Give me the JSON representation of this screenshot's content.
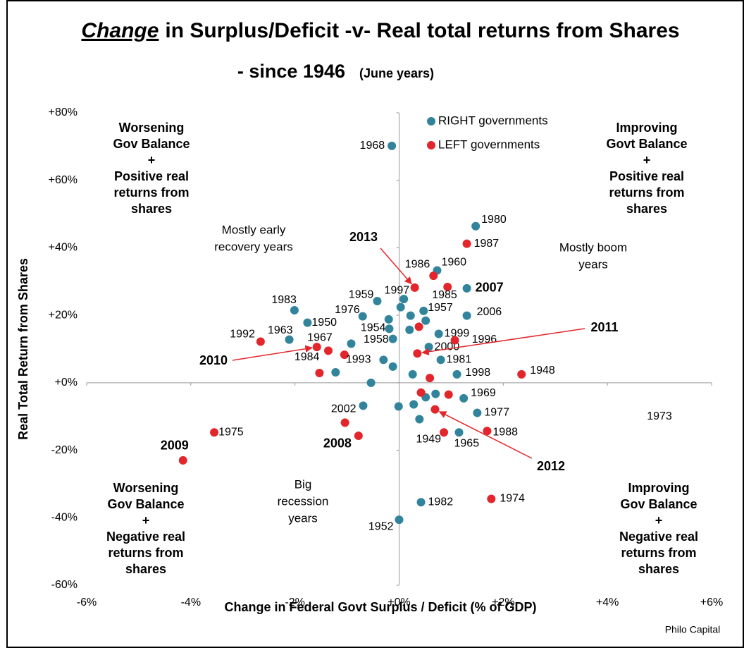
{
  "chart_data": {
    "type": "scatter",
    "title": [
      "Change",
      "in Surplus/Deficit -v- Real total returns from Shares"
    ],
    "subtitle": [
      "- since 1946",
      "(June years)"
    ],
    "x_label": "Change in Federal Govt Surplus / Deficit (% of GDP)",
    "y_label": "Real Total Return from Shares",
    "source": "Philo Capital",
    "xlim": [
      -6,
      6
    ],
    "ylim": [
      -60,
      80
    ],
    "xticks": [
      {
        "value": -6,
        "label": "-6%"
      },
      {
        "value": -4,
        "label": "-4%"
      },
      {
        "value": -2,
        "label": "-2%"
      },
      {
        "value": 0,
        "label": "+0%"
      },
      {
        "value": 2,
        "label": "+2%"
      },
      {
        "value": 4,
        "label": "+4%"
      },
      {
        "value": 6,
        "label": "+6%"
      }
    ],
    "yticks": [
      {
        "value": -60,
        "label": "-60%"
      },
      {
        "value": -40,
        "label": "-40%"
      },
      {
        "value": -20,
        "label": "-20%"
      },
      {
        "value": 0,
        "label": "+0%"
      },
      {
        "value": 20,
        "label": "+20%"
      },
      {
        "value": 40,
        "label": "+40%"
      },
      {
        "value": 60,
        "label": "+60%"
      },
      {
        "value": 80,
        "label": "+80%"
      }
    ],
    "series": [
      {
        "name": "RIGHT governments",
        "color": "#31849b",
        "x": [
          -0.14,
          1.47,
          0.73,
          1.3,
          -2.01,
          -0.42,
          0.09,
          0.03,
          -0.7,
          -0.2,
          0.47,
          0.22,
          0.51,
          -1.76,
          -0.19,
          0.2,
          -2.11,
          -0.12,
          0.76,
          1.3,
          -0.92,
          0.57,
          0.8,
          -0.3,
          -0.12,
          -1.22,
          0.26,
          1.11,
          -0.54,
          -0.69,
          -0.01,
          0.28,
          0.51,
          0.7,
          1.24,
          1.5,
          0.39,
          1.15,
          0.42,
          0
        ],
        "y": [
          70.2,
          46.4,
          33.3,
          28.0,
          21.5,
          24.2,
          24.8,
          22.4,
          19.7,
          18.8,
          21.3,
          19.9,
          18.4,
          17.8,
          16.0,
          15.7,
          12.8,
          13.0,
          14.5,
          19.9,
          11.6,
          10.6,
          6.8,
          6.8,
          4.8,
          3.1,
          2.5,
          2.5,
          0,
          -6.8,
          -7.0,
          -6.4,
          -4.3,
          -3.3,
          -4.6,
          -8.9,
          -10.8,
          -14.7,
          -35.4,
          -40.6
        ],
        "labels": [
          "1968",
          "1980",
          "1960",
          "2007",
          "1983",
          "1959",
          "1997",
          null,
          "1976",
          null,
          "1957",
          null,
          null,
          "1950",
          "1954",
          null,
          "1963",
          "1958",
          "1999",
          "2006",
          null,
          "2000",
          "1981",
          null,
          null,
          null,
          null,
          "1998",
          null,
          "2002",
          null,
          null,
          null,
          null,
          "1969",
          "1977",
          null,
          "1965",
          "1982",
          "1952"
        ]
      },
      {
        "name": "LEFT governments",
        "color": "#e3262b",
        "x": [
          0.3,
          0.66,
          0.93,
          1.3,
          -2.66,
          -1.58,
          -1.36,
          -1.05,
          0.38,
          1.07,
          0.35,
          -1.53,
          0.59,
          2.35,
          0.42,
          0.95,
          0.69,
          -3.55,
          -4.15,
          -1.04,
          -0.78,
          0.86,
          1.69,
          1.77
        ],
        "y": [
          28.2,
          31.7,
          28.4,
          41.2,
          12.2,
          10.6,
          9.5,
          8.3,
          16.6,
          12.6,
          8.7,
          2.9,
          1.4,
          2.5,
          -2.9,
          -3.5,
          -7.9,
          -14.7,
          -23.0,
          -11.8,
          -15.7,
          -14.7,
          -14.3,
          -34.4
        ],
        "labels": [
          null,
          "1986",
          "1985",
          "1987",
          "1992",
          null,
          "1967",
          "1993",
          null,
          "1996",
          null,
          "1984",
          null,
          "1948",
          null,
          null,
          null,
          "1975",
          "2009",
          null,
          "2008",
          "1949",
          "1988",
          "1974"
        ]
      }
    ],
    "arrow_labels": [
      "2013",
      "2010",
      "2011",
      "2012"
    ],
    "extra_labels": [
      "1973"
    ],
    "quadrants": [
      [
        "Worsening",
        "Gov Balance",
        "+",
        "Positive real",
        "returns from",
        "shares"
      ],
      [
        "Improving",
        "Govt Balance",
        "+",
        "Positive real",
        "returns from",
        "shares"
      ],
      [
        "Worsening",
        "Gov Balance",
        "+",
        "Negative real",
        "returns from",
        "shares"
      ],
      [
        "Improving",
        "Gov Balance",
        "+",
        "Negative real",
        "returns from",
        "shares"
      ]
    ],
    "notes": [
      [
        "Mostly early",
        "recovery years"
      ],
      [
        "Mostly boom",
        "years"
      ],
      [
        "Big",
        "recession",
        "years"
      ]
    ]
  }
}
